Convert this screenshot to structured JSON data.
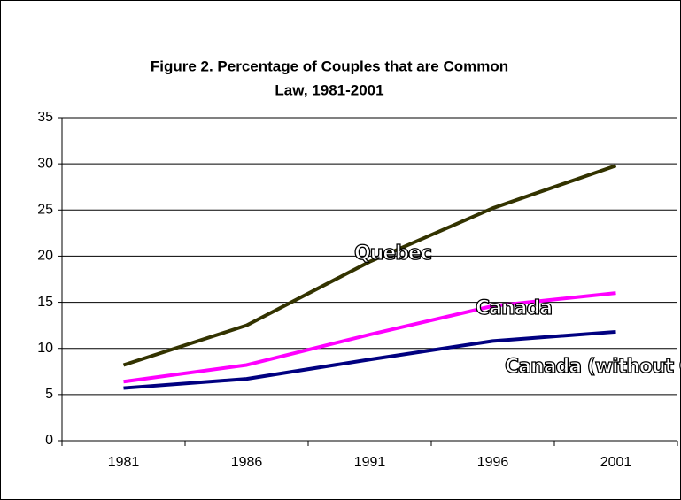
{
  "chart_data": {
    "type": "line",
    "title": [
      "Figure 2.  Percentage of Couples that are Common",
      "Law, 1981-2001"
    ],
    "categories": [
      "1981",
      "1986",
      "1991",
      "1996",
      "2001"
    ],
    "series": [
      {
        "name": "Quebec",
        "color": "#333300",
        "values": [
          8.2,
          12.5,
          19.4,
          25.2,
          29.8
        ]
      },
      {
        "name": "Canada",
        "color": "#ff00ff",
        "values": [
          6.4,
          8.2,
          11.5,
          14.6,
          16.0
        ]
      },
      {
        "name": "Canada (without Quebec)",
        "color": "#000080",
        "values": [
          5.7,
          6.7,
          8.8,
          10.8,
          11.8
        ]
      }
    ],
    "ylim": [
      0,
      35
    ],
    "yticks": [
      0,
      5,
      10,
      15,
      20,
      25,
      30,
      35
    ],
    "grid": true
  }
}
